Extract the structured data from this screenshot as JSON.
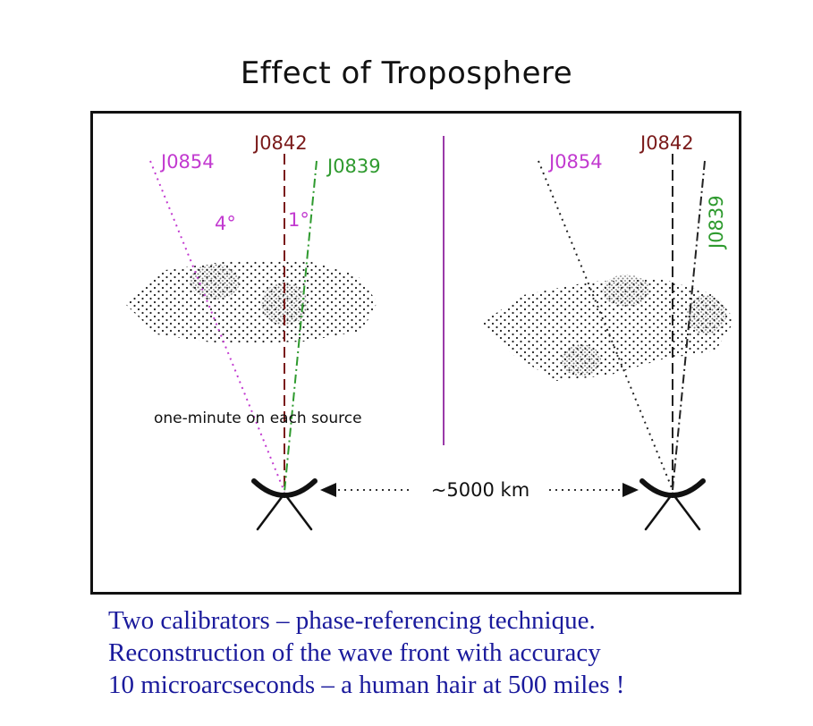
{
  "title": "Effect of Troposphere",
  "left_panel": {
    "source_1": "J0854",
    "source_2": "J0842",
    "source_3": "J0839",
    "angle_1": "4°",
    "angle_2": "1°",
    "note": "one-minute on each source"
  },
  "right_panel": {
    "source_1": "J0854",
    "source_2": "J0842",
    "source_3": "J0839"
  },
  "baseline_label": "~5000 km",
  "caption": {
    "line_1": "Two calibrators – phase-referencing technique.",
    "line_2": "Reconstruction of the wave front with accuracy",
    "line_3": "10 microarcseconds – a human hair at 500 miles !"
  },
  "colors": {
    "j0854": "#c23ad0",
    "j0842": "#7a1a1a",
    "j0839": "#2e9a2e",
    "divider": "#9a3aa8",
    "caption": "#1a1a9c"
  }
}
